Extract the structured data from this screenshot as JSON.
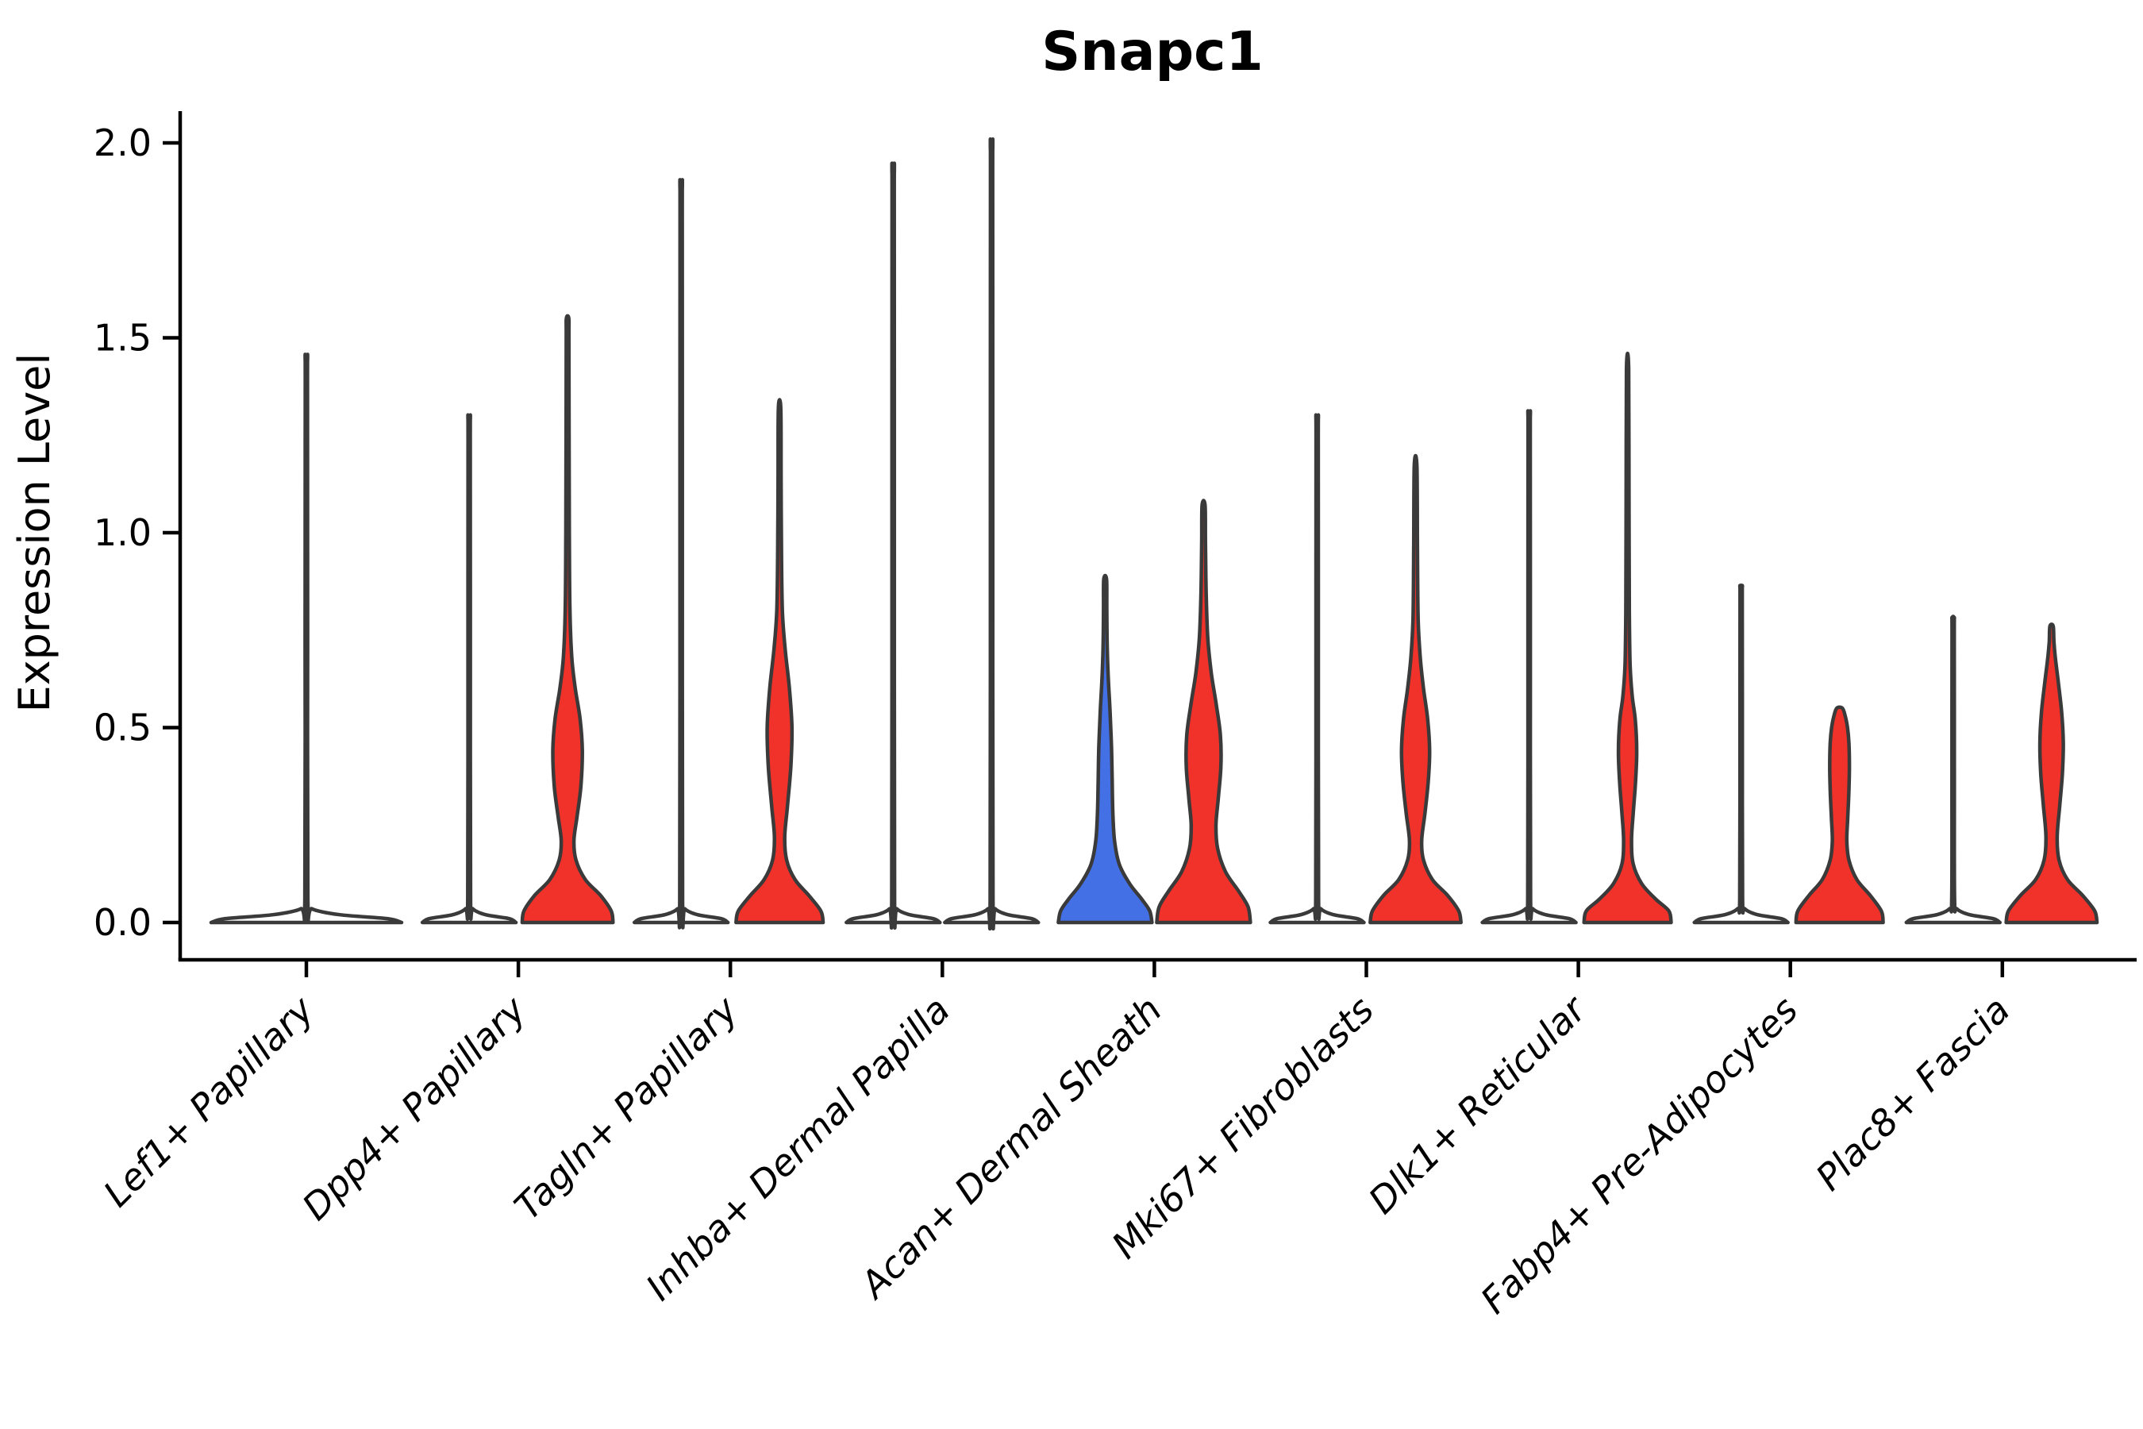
{
  "title": "Snapc1",
  "axes": {
    "ylabel": "Expression Level",
    "ytick_labels": [
      "0.0",
      "0.5",
      "1.0",
      "1.5",
      "2.0"
    ]
  },
  "colors": {
    "red_fill": "#F0322B",
    "blue_fill": "#4470E6",
    "violin_outline": "#3A3A3A",
    "axis_color": "#000000",
    "background": "#FFFFFF"
  },
  "chart_data": {
    "type": "violin",
    "title": "Snapc1",
    "ylabel": "Expression Level",
    "yticks": [
      0.0,
      0.5,
      1.0,
      1.5,
      2.0
    ],
    "ylim": [
      -0.1,
      2.08
    ],
    "grid": false,
    "legend": "none shown",
    "categories": [
      "Lef1+ Papillary",
      "Dpp4+ Papillary",
      "Tagln+ Papillary",
      "Inhba+ Dermal Papilla",
      "Acan+ Dermal Sheath",
      "Mki67+ Fibroblasts",
      "Dlk1+ Reticular",
      "Fabp4+ Pre-Adipocytes",
      "Plac8+ Fascia"
    ],
    "groups": [
      {
        "category": "Lef1+ Papillary",
        "violins": [
          {
            "dodge": 0,
            "fill_color": "none",
            "appearance": "flat line with thin spike",
            "max_expression": 1.44,
            "profile": [
              [
                0,
                1.0
              ],
              [
                0.01,
                0.85
              ],
              [
                0.02,
                0.35
              ],
              [
                0.035,
                0.06
              ],
              [
                0.06,
                0.016
              ],
              [
                0.72,
                0.013
              ],
              [
                1.39,
                0.012
              ],
              [
                1.44,
                0.011
              ]
            ]
          }
        ]
      },
      {
        "category": "Dpp4+ Papillary",
        "violins": [
          {
            "dodge": -1,
            "fill_color": "none",
            "appearance": "flat line with thin spike",
            "max_expression": 1.29,
            "profile": [
              [
                0,
                1.0
              ],
              [
                0.01,
                0.85
              ],
              [
                0.02,
                0.35
              ],
              [
                0.035,
                0.08
              ],
              [
                0.06,
                0.03
              ],
              [
                0.65,
                0.026
              ],
              [
                1.24,
                0.024
              ],
              [
                1.29,
                0.022
              ]
            ]
          },
          {
            "dodge": 1,
            "fill_color": "#F0322B",
            "appearance": "bell base with mid spindle",
            "max_expression": 1.55,
            "profile": [
              [
                0,
                0.97
              ],
              [
                0.03,
                0.93
              ],
              [
                0.07,
                0.7
              ],
              [
                0.11,
                0.38
              ],
              [
                0.16,
                0.18
              ],
              [
                0.21,
                0.135
              ],
              [
                0.27,
                0.2
              ],
              [
                0.35,
                0.285
              ],
              [
                0.44,
                0.315
              ],
              [
                0.52,
                0.27
              ],
              [
                0.6,
                0.165
              ],
              [
                0.68,
                0.09
              ],
              [
                0.8,
                0.05
              ],
              [
                1.0,
                0.038
              ],
              [
                1.25,
                0.032
              ],
              [
                1.5,
                0.028
              ],
              [
                1.55,
                0.026
              ]
            ]
          }
        ]
      },
      {
        "category": "Tagln+ Papillary",
        "violins": [
          {
            "dodge": -1,
            "fill_color": "none",
            "appearance": "flat line with thin spike",
            "max_expression": 1.88,
            "profile": [
              [
                0,
                1.0
              ],
              [
                0.01,
                0.85
              ],
              [
                0.02,
                0.35
              ],
              [
                0.035,
                0.08
              ],
              [
                0.06,
                0.03
              ],
              [
                0.95,
                0.026
              ],
              [
                1.82,
                0.024
              ],
              [
                1.88,
                0.022
              ]
            ]
          },
          {
            "dodge": 1,
            "fill_color": "#F0322B",
            "appearance": "bell base with mid spindle",
            "max_expression": 1.32,
            "profile": [
              [
                0,
                0.93
              ],
              [
                0.03,
                0.88
              ],
              [
                0.07,
                0.62
              ],
              [
                0.11,
                0.33
              ],
              [
                0.16,
                0.15
              ],
              [
                0.22,
                0.11
              ],
              [
                0.3,
                0.17
              ],
              [
                0.4,
                0.24
              ],
              [
                0.5,
                0.265
              ],
              [
                0.6,
                0.21
              ],
              [
                0.7,
                0.12
              ],
              [
                0.8,
                0.06
              ],
              [
                0.95,
                0.04
              ],
              [
                1.15,
                0.032
              ],
              [
                1.32,
                0.026
              ]
            ]
          }
        ]
      },
      {
        "category": "Inhba+ Dermal Papilla",
        "violins": [
          {
            "dodge": -1,
            "fill_color": "none",
            "appearance": "flat line with thin spike",
            "max_expression": 1.92,
            "profile": [
              [
                0,
                1.0
              ],
              [
                0.01,
                0.85
              ],
              [
                0.02,
                0.35
              ],
              [
                0.035,
                0.08
              ],
              [
                0.06,
                0.03
              ],
              [
                0.96,
                0.026
              ],
              [
                1.86,
                0.024
              ],
              [
                1.92,
                0.022
              ]
            ]
          },
          {
            "dodge": 1,
            "fill_color": "none",
            "appearance": "flat line with thin spike",
            "max_expression": 1.98,
            "profile": [
              [
                0,
                1.0
              ],
              [
                0.01,
                0.85
              ],
              [
                0.02,
                0.35
              ],
              [
                0.035,
                0.08
              ],
              [
                0.06,
                0.03
              ],
              [
                0.99,
                0.026
              ],
              [
                1.92,
                0.024
              ],
              [
                1.98,
                0.022
              ]
            ]
          }
        ]
      },
      {
        "category": "Acan+ Dermal Sheath",
        "violins": [
          {
            "dodge": -1,
            "fill_color": "#4470E6",
            "appearance": "wide bell tapering cone",
            "max_expression": 0.88,
            "profile": [
              [
                0,
                1.0
              ],
              [
                0.03,
                0.95
              ],
              [
                0.06,
                0.78
              ],
              [
                0.1,
                0.52
              ],
              [
                0.15,
                0.3
              ],
              [
                0.21,
                0.2
              ],
              [
                0.28,
                0.165
              ],
              [
                0.36,
                0.15
              ],
              [
                0.45,
                0.135
              ],
              [
                0.54,
                0.105
              ],
              [
                0.62,
                0.07
              ],
              [
                0.7,
                0.045
              ],
              [
                0.8,
                0.035
              ],
              [
                0.88,
                0.03
              ]
            ]
          },
          {
            "dodge": 1,
            "fill_color": "#F0322B",
            "appearance": "wide bell with broad mid bulge",
            "max_expression": 1.07,
            "profile": [
              [
                0,
                1.0
              ],
              [
                0.04,
                0.95
              ],
              [
                0.08,
                0.75
              ],
              [
                0.13,
                0.47
              ],
              [
                0.19,
                0.3
              ],
              [
                0.25,
                0.265
              ],
              [
                0.32,
                0.315
              ],
              [
                0.4,
                0.37
              ],
              [
                0.48,
                0.36
              ],
              [
                0.56,
                0.27
              ],
              [
                0.64,
                0.165
              ],
              [
                0.73,
                0.09
              ],
              [
                0.85,
                0.055
              ],
              [
                0.97,
                0.04
              ],
              [
                1.07,
                0.032
              ]
            ]
          }
        ]
      },
      {
        "category": "Mki67+ Fibroblasts",
        "violins": [
          {
            "dodge": -1,
            "fill_color": "none",
            "appearance": "flat line with thin spike",
            "max_expression": 1.29,
            "profile": [
              [
                0,
                1.0
              ],
              [
                0.01,
                0.85
              ],
              [
                0.02,
                0.35
              ],
              [
                0.035,
                0.08
              ],
              [
                0.06,
                0.03
              ],
              [
                0.65,
                0.026
              ],
              [
                1.24,
                0.024
              ],
              [
                1.29,
                0.022
              ]
            ]
          },
          {
            "dodge": 1,
            "fill_color": "#F0322B",
            "appearance": "bell base with mid spindle",
            "max_expression": 1.17,
            "profile": [
              [
                0,
                0.97
              ],
              [
                0.03,
                0.92
              ],
              [
                0.07,
                0.68
              ],
              [
                0.11,
                0.36
              ],
              [
                0.16,
                0.17
              ],
              [
                0.21,
                0.13
              ],
              [
                0.28,
                0.2
              ],
              [
                0.36,
                0.27
              ],
              [
                0.44,
                0.3
              ],
              [
                0.52,
                0.26
              ],
              [
                0.6,
                0.17
              ],
              [
                0.68,
                0.1
              ],
              [
                0.78,
                0.055
              ],
              [
                0.95,
                0.04
              ],
              [
                1.17,
                0.028
              ]
            ]
          }
        ]
      },
      {
        "category": "Dlk1+ Reticular",
        "violins": [
          {
            "dodge": -1,
            "fill_color": "none",
            "appearance": "flat line with thin spike",
            "max_expression": 1.3,
            "profile": [
              [
                0,
                1.0
              ],
              [
                0.01,
                0.85
              ],
              [
                0.02,
                0.35
              ],
              [
                0.035,
                0.08
              ],
              [
                0.06,
                0.03
              ],
              [
                0.65,
                0.026
              ],
              [
                1.25,
                0.024
              ],
              [
                1.3,
                0.022
              ]
            ]
          },
          {
            "dodge": 1,
            "fill_color": "#F0322B",
            "appearance": "bell base with narrow spindle and long tail",
            "max_expression": 1.42,
            "profile": [
              [
                0,
                0.93
              ],
              [
                0.03,
                0.88
              ],
              [
                0.06,
                0.6
              ],
              [
                0.1,
                0.3
              ],
              [
                0.15,
                0.12
              ],
              [
                0.21,
                0.085
              ],
              [
                0.28,
                0.12
              ],
              [
                0.36,
                0.17
              ],
              [
                0.44,
                0.195
              ],
              [
                0.52,
                0.165
              ],
              [
                0.58,
                0.1
              ],
              [
                0.66,
                0.055
              ],
              [
                0.8,
                0.038
              ],
              [
                1.1,
                0.03
              ],
              [
                1.42,
                0.024
              ]
            ]
          }
        ]
      },
      {
        "category": "Fabp4+ Pre-Adipocytes",
        "violins": [
          {
            "dodge": -1,
            "fill_color": "none",
            "appearance": "flat line with thin spike",
            "max_expression": 0.86,
            "profile": [
              [
                0,
                1.0
              ],
              [
                0.01,
                0.85
              ],
              [
                0.02,
                0.35
              ],
              [
                0.035,
                0.08
              ],
              [
                0.06,
                0.03
              ],
              [
                0.43,
                0.026
              ],
              [
                0.82,
                0.024
              ],
              [
                0.86,
                0.022
              ]
            ]
          },
          {
            "dodge": 1,
            "fill_color": "#F0322B",
            "appearance": "short blunt column with slight spindle",
            "max_expression": 0.55,
            "profile": [
              [
                0,
                0.93
              ],
              [
                0.03,
                0.89
              ],
              [
                0.07,
                0.65
              ],
              [
                0.11,
                0.37
              ],
              [
                0.16,
                0.2
              ],
              [
                0.21,
                0.155
              ],
              [
                0.27,
                0.175
              ],
              [
                0.34,
                0.2
              ],
              [
                0.4,
                0.21
              ],
              [
                0.46,
                0.2
              ],
              [
                0.5,
                0.17
              ],
              [
                0.53,
                0.12
              ],
              [
                0.55,
                0.06
              ]
            ]
          }
        ]
      },
      {
        "category": "Plac8+ Fascia",
        "violins": [
          {
            "dodge": -1,
            "fill_color": "none",
            "appearance": "flat line with thin spike",
            "max_expression": 0.78,
            "profile": [
              [
                0,
                1.0
              ],
              [
                0.01,
                0.85
              ],
              [
                0.02,
                0.35
              ],
              [
                0.035,
                0.08
              ],
              [
                0.06,
                0.03
              ],
              [
                0.39,
                0.026
              ],
              [
                0.74,
                0.024
              ],
              [
                0.78,
                0.022
              ]
            ]
          },
          {
            "dodge": 1,
            "fill_color": "#F0322B",
            "appearance": "bell base with mid spindle",
            "max_expression": 0.76,
            "profile": [
              [
                0,
                0.97
              ],
              [
                0.03,
                0.92
              ],
              [
                0.07,
                0.66
              ],
              [
                0.11,
                0.34
              ],
              [
                0.16,
                0.16
              ],
              [
                0.22,
                0.12
              ],
              [
                0.3,
                0.175
              ],
              [
                0.38,
                0.23
              ],
              [
                0.46,
                0.25
              ],
              [
                0.54,
                0.215
              ],
              [
                0.62,
                0.14
              ],
              [
                0.68,
                0.08
              ],
              [
                0.72,
                0.05
              ],
              [
                0.76,
                0.035
              ]
            ]
          }
        ]
      }
    ]
  }
}
